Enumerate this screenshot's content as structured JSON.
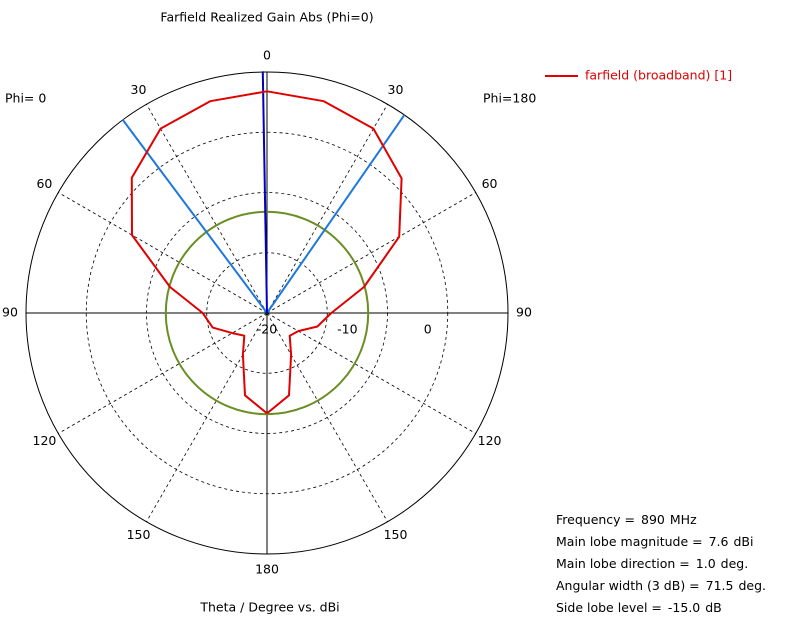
{
  "chart_data": {
    "type": "polar",
    "title": "Farfield Realized Gain Abs (Phi=0)",
    "x_label": "Theta / Degree vs. dBi",
    "left_label": "Phi=  0",
    "right_label": "Phi=180",
    "rlim": [
      -20,
      10
    ],
    "rticks": [
      -20,
      -10,
      0
    ],
    "angle_ticks": [
      {
        "value": -150,
        "label": "150"
      },
      {
        "value": -120,
        "label": "120"
      },
      {
        "value": -90,
        "label": "90"
      },
      {
        "value": -60,
        "label": "60"
      },
      {
        "value": -30,
        "label": "30"
      },
      0,
      30,
      60,
      90,
      120,
      150,
      180
    ],
    "series": [
      {
        "name": "farfield (broadband) [1]",
        "color": "#e00000",
        "theta": [
          -180,
          -165,
          -150,
          -135,
          -120,
          -105,
          -90,
          -75,
          -60,
          -45,
          -30,
          -15,
          0,
          15,
          30,
          45,
          60,
          75,
          90,
          105,
          120,
          135,
          150,
          165,
          180
        ],
        "values": [
          -7.5,
          -9.4,
          -14,
          -16,
          -15.5,
          -13.5,
          -12,
          -7.5,
          -1,
          3.7,
          6.5,
          7.3,
          7.6,
          7.3,
          6.5,
          3.8,
          -0.6,
          -7.5,
          -12,
          -13,
          -15,
          -16,
          -14,
          -9.4,
          -7.5
        ]
      }
    ],
    "direction_color": "#0000c0",
    "beam_color": "#1e78dc",
    "sidelobe_color": "#6b8e23",
    "info": [
      {
        "label": "Frequency =",
        "value": 890,
        "unit": "MHz"
      },
      {
        "label": "Main lobe magnitude =",
        "value": 7.6,
        "unit": "dBi"
      },
      {
        "label": "Main lobe direction =",
        "value": 1.0,
        "value_label": "1.0",
        "unit": "deg."
      },
      {
        "label": "Angular width (3 dB) =",
        "value": 71.5,
        "unit": "deg."
      },
      {
        "label": "Side lobe level =",
        "value": -15.0,
        "value_label": "-15.0",
        "unit": "dB"
      }
    ]
  }
}
